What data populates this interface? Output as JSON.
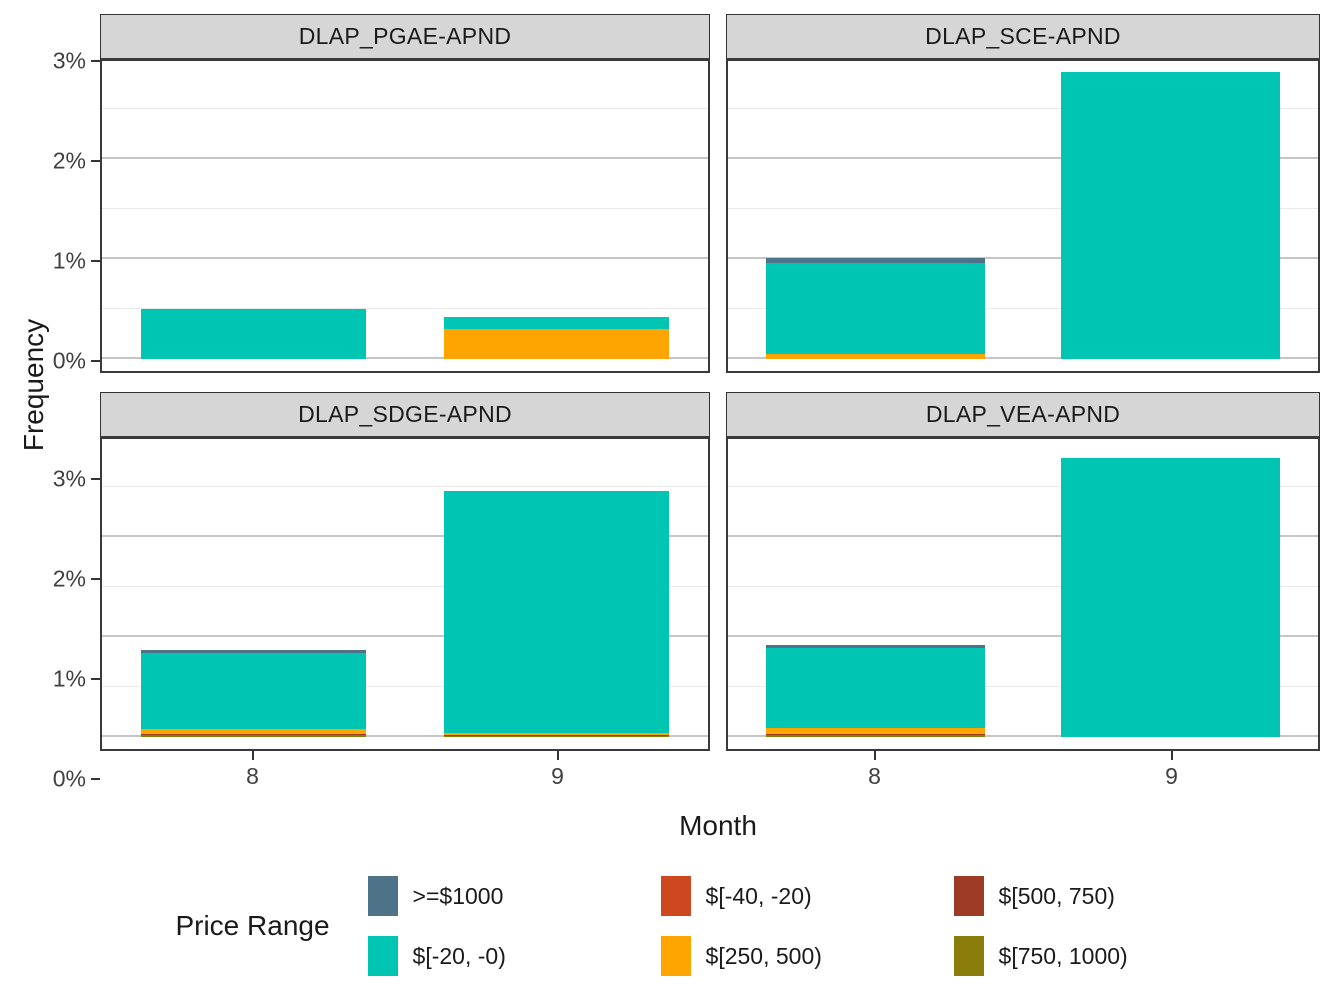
{
  "axes": {
    "y_title": "Frequency",
    "x_title": "Month",
    "y_tick_labels": [
      "0%",
      "1%",
      "2%",
      "3%"
    ],
    "y_tick_values": [
      0,
      1,
      2,
      3
    ],
    "x_tick_labels": [
      "8",
      "9"
    ]
  },
  "legend": {
    "title": "Price Range",
    "items": [
      {
        "label": ">=$1000",
        "color": "#4E7287"
      },
      {
        "label": "$[-20, -0)",
        "color": "#00C5B3"
      },
      {
        "label": "$[-40, -20)",
        "color": "#CE481F"
      },
      {
        "label": "$[250, 500)",
        "color": "#FFA502"
      },
      {
        "label": "$[500, 750)",
        "color": "#9D3A23"
      },
      {
        "label": "$[750, 1000)",
        "color": "#8A7D0B"
      }
    ]
  },
  "chart_data": {
    "type": "bar",
    "stacked": true,
    "title": "",
    "xlabel": "Month",
    "ylabel": "Frequency",
    "x_categories": [
      "8",
      "9"
    ],
    "ylim": [
      0,
      3
    ],
    "y_unit": "percent",
    "y_major_gridlines": [
      0,
      1,
      2,
      3
    ],
    "y_minor_gridlines": [
      0.5,
      1.5,
      2.5
    ],
    "legend_position": "bottom",
    "facets": [
      {
        "name": "DLAP_PGAE-APND",
        "bars": [
          {
            "month": "8",
            "segments_bottom_to_top": [
              {
                "range": "$[-20, -0)",
                "value": 0.5
              }
            ]
          },
          {
            "month": "9",
            "segments_bottom_to_top": [
              {
                "range": "$[250, 500)",
                "value": 0.3
              },
              {
                "range": "$[-20, -0)",
                "value": 0.12
              }
            ]
          }
        ]
      },
      {
        "name": "DLAP_SCE-APND",
        "bars": [
          {
            "month": "8",
            "segments_bottom_to_top": [
              {
                "range": "$[250, 500)",
                "value": 0.05
              },
              {
                "range": "$[-20, -0)",
                "value": 0.91
              },
              {
                "range": ">=$1000",
                "value": 0.05
              }
            ]
          },
          {
            "month": "9",
            "segments_bottom_to_top": [
              {
                "range": "$[-20, -0)",
                "value": 2.87
              }
            ]
          }
        ]
      },
      {
        "name": "DLAP_SDGE-APND",
        "bars": [
          {
            "month": "8",
            "segments_bottom_to_top": [
              {
                "range": "$[750, 1000)",
                "value": 0.02
              },
              {
                "range": "$[500, 750)",
                "value": 0.01
              },
              {
                "range": "$[250, 500)",
                "value": 0.05
              },
              {
                "range": "$[-20, -0)",
                "value": 0.76
              },
              {
                "range": ">=$1000",
                "value": 0.03
              }
            ]
          },
          {
            "month": "9",
            "segments_bottom_to_top": [
              {
                "range": "$[750, 1000)",
                "value": 0.01
              },
              {
                "range": "$[500, 750)",
                "value": 0.01
              },
              {
                "range": "$[250, 500)",
                "value": 0.02
              },
              {
                "range": "$[-20, -0)",
                "value": 2.42
              }
            ]
          }
        ]
      },
      {
        "name": "DLAP_VEA-APND",
        "bars": [
          {
            "month": "8",
            "segments_bottom_to_top": [
              {
                "range": "$[750, 1000)",
                "value": 0.02
              },
              {
                "range": "$[500, 750)",
                "value": 0.01
              },
              {
                "range": "$[250, 500)",
                "value": 0.06
              },
              {
                "range": "$[-20, -0)",
                "value": 0.8
              },
              {
                "range": ">=$1000",
                "value": 0.03
              }
            ]
          },
          {
            "month": "9",
            "segments_bottom_to_top": [
              {
                "range": "$[-20, -0)",
                "value": 2.79
              }
            ]
          }
        ]
      }
    ]
  },
  "theme": {
    "strip_background": "#D6D6D6",
    "panel_border": "#3A3A3A",
    "grid_major": "#C6C6C6",
    "grid_minor": "#E9E9E9",
    "tick_label_color": "#404040",
    "text_color": "#1A1A1A",
    "background": "#FFFFFF"
  }
}
